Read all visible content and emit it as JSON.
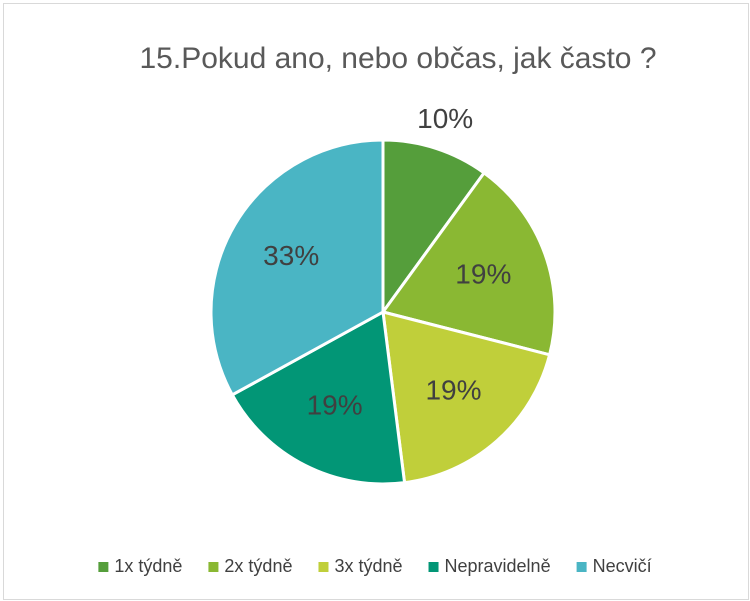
{
  "chart_data": {
    "type": "pie",
    "title": "15.Pokud ano, nebo občas, jak často ?",
    "categories": [
      "1x týdně",
      "2x týdně",
      "3x týdně",
      "Nepravidelně",
      "Necvičí"
    ],
    "values": [
      10,
      19,
      19,
      19,
      33
    ],
    "value_labels": [
      "10%",
      "19%",
      "19%",
      "19%",
      "33%"
    ],
    "colors": [
      "#559e3b",
      "#8ab833",
      "#c0cf3a",
      "#029676",
      "#4ab5c4"
    ],
    "legend": "bottom"
  }
}
